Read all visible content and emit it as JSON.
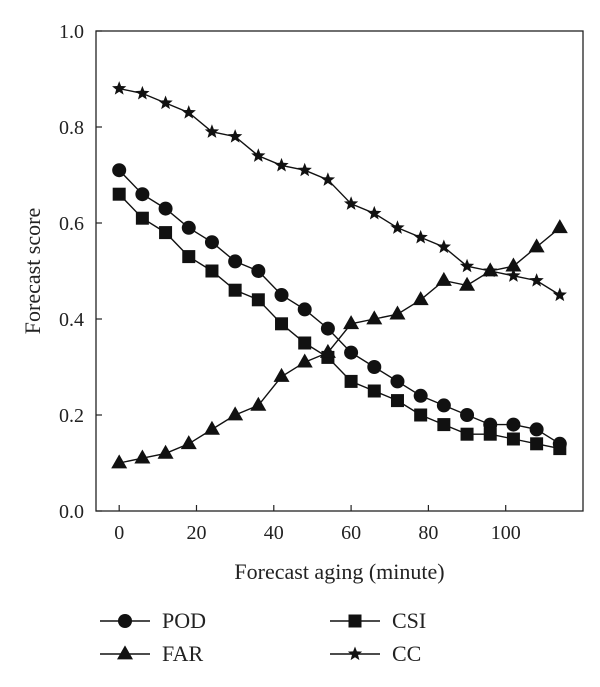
{
  "chart_data": {
    "type": "line",
    "title": "",
    "xlabel": "Forecast aging (minute)",
    "ylabel": "Forecast score",
    "xlim": [
      -6,
      120
    ],
    "ylim": [
      0,
      1
    ],
    "xticks": [
      0,
      20,
      40,
      60,
      80,
      100
    ],
    "yticks": [
      0.0,
      0.2,
      0.4,
      0.6,
      0.8,
      1.0
    ],
    "xtick_labels": [
      "0",
      "20",
      "40",
      "60",
      "80",
      "100"
    ],
    "ytick_labels": [
      "0.0",
      "0.2",
      "0.4",
      "0.6",
      "0.8",
      "1.0"
    ],
    "grid": false,
    "legend_position": "bottom",
    "x": [
      0,
      6,
      12,
      18,
      24,
      30,
      36,
      42,
      48,
      54,
      60,
      66,
      72,
      78,
      84,
      90,
      96,
      102,
      108,
      114
    ],
    "series": [
      {
        "name": "POD",
        "marker": "circle",
        "values": [
          0.71,
          0.66,
          0.63,
          0.59,
          0.56,
          0.52,
          0.5,
          0.45,
          0.42,
          0.38,
          0.33,
          0.3,
          0.27,
          0.24,
          0.22,
          0.2,
          0.18,
          0.18,
          0.17,
          0.14
        ]
      },
      {
        "name": "CSI",
        "marker": "square",
        "values": [
          0.66,
          0.61,
          0.58,
          0.53,
          0.5,
          0.46,
          0.44,
          0.39,
          0.35,
          0.32,
          0.27,
          0.25,
          0.23,
          0.2,
          0.18,
          0.16,
          0.16,
          0.15,
          0.14,
          0.13
        ]
      },
      {
        "name": "FAR",
        "marker": "triangle",
        "values": [
          0.1,
          0.11,
          0.12,
          0.14,
          0.17,
          0.2,
          0.22,
          0.28,
          0.31,
          0.33,
          0.39,
          0.4,
          0.41,
          0.44,
          0.48,
          0.47,
          0.5,
          0.51,
          0.55,
          0.59
        ]
      },
      {
        "name": "CC",
        "marker": "star",
        "values": [
          0.88,
          0.87,
          0.85,
          0.83,
          0.79,
          0.78,
          0.74,
          0.72,
          0.71,
          0.69,
          0.64,
          0.62,
          0.59,
          0.57,
          0.55,
          0.51,
          0.5,
          0.49,
          0.48,
          0.45
        ]
      }
    ]
  }
}
